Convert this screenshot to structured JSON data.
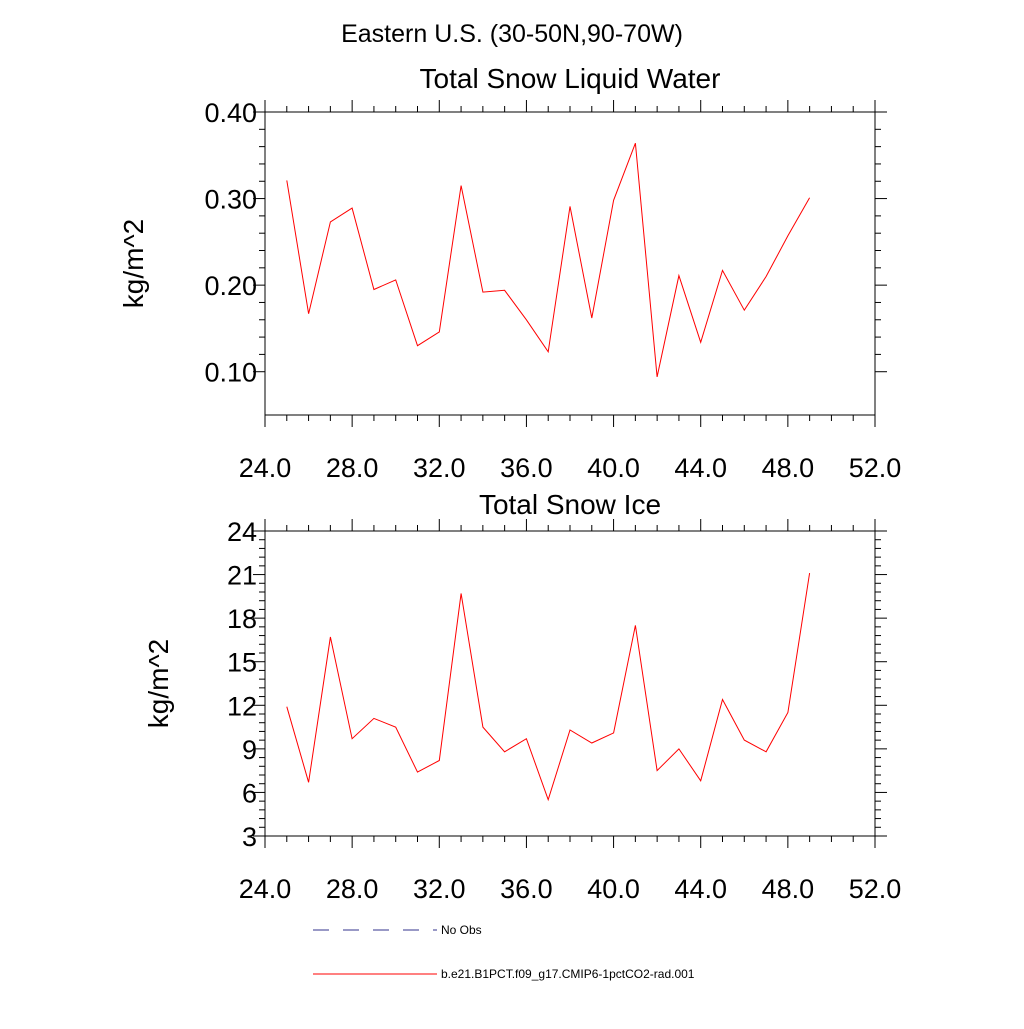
{
  "figure": {
    "suptitle": "Eastern U.S. (30-50N,90-70W)"
  },
  "chart_data": [
    {
      "type": "line",
      "title": "Total Snow Liquid Water",
      "xlabel": "",
      "ylabel": "kg/m^2",
      "xlim": [
        24,
        52
      ],
      "ylim": [
        0.05,
        0.4
      ],
      "xticks": [
        24,
        28,
        32,
        36,
        40,
        44,
        48,
        52
      ],
      "xtick_labels": [
        "24.0",
        "28.0",
        "32.0",
        "36.0",
        "40.0",
        "44.0",
        "48.0",
        "52.0"
      ],
      "yticks": [
        0.1,
        0.2,
        0.3,
        0.4
      ],
      "ytick_labels": [
        "0.10",
        "0.20",
        "0.30",
        "0.40"
      ],
      "grid": false,
      "series": [
        {
          "name": "b.e21.B1PCT.f09_g17.CMIP6-1pctCO2-rad.001",
          "color": "#ff0000",
          "x": [
            25,
            26,
            27,
            28,
            29,
            30,
            31,
            32,
            33,
            34,
            35,
            36,
            37,
            38,
            39,
            40,
            41,
            42,
            43,
            44,
            45,
            46,
            47,
            48,
            49
          ],
          "y": [
            0.321,
            0.167,
            0.273,
            0.289,
            0.195,
            0.206,
            0.13,
            0.146,
            0.315,
            0.192,
            0.194,
            0.16,
            0.123,
            0.291,
            0.162,
            0.298,
            0.364,
            0.094,
            0.211,
            0.134,
            0.217,
            0.171,
            0.21,
            0.257,
            0.301
          ]
        }
      ]
    },
    {
      "type": "line",
      "title": "Total Snow Ice",
      "xlabel": "",
      "ylabel": "kg/m^2",
      "xlim": [
        24,
        52
      ],
      "ylim": [
        3,
        24
      ],
      "xticks": [
        24,
        28,
        32,
        36,
        40,
        44,
        48,
        52
      ],
      "xtick_labels": [
        "24.0",
        "28.0",
        "32.0",
        "36.0",
        "40.0",
        "44.0",
        "48.0",
        "52.0"
      ],
      "yticks": [
        3,
        6,
        9,
        12,
        15,
        18,
        21,
        24
      ],
      "ytick_labels": [
        "3",
        "6",
        "9",
        "12",
        "15",
        "18",
        "21",
        "24"
      ],
      "grid": false,
      "series": [
        {
          "name": "b.e21.B1PCT.f09_g17.CMIP6-1pctCO2-rad.001",
          "color": "#ff0000",
          "x": [
            25,
            26,
            27,
            28,
            29,
            30,
            31,
            32,
            33,
            34,
            35,
            36,
            37,
            38,
            39,
            40,
            41,
            42,
            43,
            44,
            45,
            46,
            47,
            48,
            49
          ],
          "y": [
            11.9,
            6.7,
            16.7,
            9.7,
            11.1,
            10.5,
            7.4,
            8.2,
            19.7,
            10.5,
            8.8,
            9.7,
            5.5,
            10.3,
            9.4,
            10.1,
            17.5,
            7.5,
            9.0,
            6.8,
            12.4,
            9.6,
            8.8,
            11.5,
            21.1
          ]
        }
      ]
    }
  ],
  "legend": {
    "placement": "bottom",
    "items": [
      {
        "label": "No Obs",
        "color": "#33338c",
        "style": "dashed"
      },
      {
        "label": "b.e21.B1PCT.f09_g17.CMIP6-1pctCO2-rad.001",
        "color": "#ff0000",
        "style": "solid"
      }
    ]
  }
}
